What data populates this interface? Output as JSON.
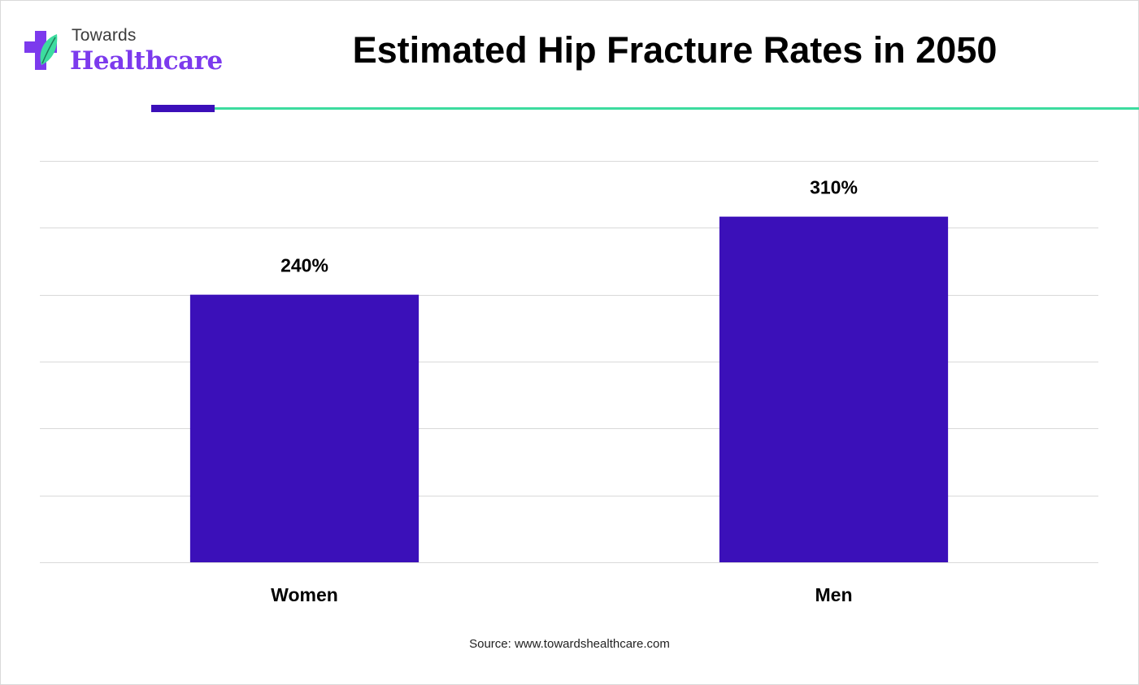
{
  "brand": {
    "line1": "Towards",
    "line2": "Healthcare",
    "colors": {
      "purple": "#7c3aed",
      "green": "#3ddc9f"
    }
  },
  "colors": {
    "bar": "#3b10b9",
    "grid": "#d9d9d9",
    "accent_rule": "#3b0fb9",
    "rule": "#3ddc9f"
  },
  "chart_data": {
    "type": "bar",
    "title": "Estimated Hip Fracture Rates in 2050",
    "categories": [
      "Women",
      "Men"
    ],
    "values": [
      240,
      310
    ],
    "value_labels": [
      "240%",
      "310%"
    ],
    "ylim": [
      0,
      360
    ],
    "grid": true,
    "y_axis_labels_shown": false
  },
  "source": "Source: www.towardshealthcare.com"
}
